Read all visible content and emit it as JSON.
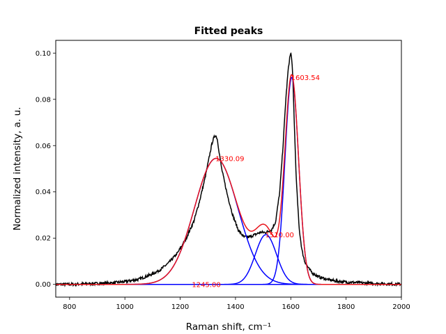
{
  "chart_data": {
    "type": "line",
    "title": "Fitted peaks",
    "xlabel": "Raman shift, cm⁻¹",
    "ylabel": "Normalized intensity, a. u.",
    "xlim": [
      750,
      2000
    ],
    "ylim": [
      -0.0055,
      0.1055
    ],
    "xticks": [
      800,
      1000,
      1200,
      1400,
      1600,
      1800,
      2000
    ],
    "xtick_labels": [
      "800",
      "1000",
      "1200",
      "1400",
      "1600",
      "1800",
      "2000"
    ],
    "yticks": [
      0.0,
      0.02,
      0.04,
      0.06,
      0.08,
      0.1
    ],
    "ytick_labels": [
      "0.00",
      "0.02",
      "0.04",
      "0.06",
      "0.08",
      "0.10"
    ],
    "grid": false,
    "series": [
      {
        "role": "measured-spectrum",
        "color": "#000000",
        "x": [
          750,
          800,
          850,
          900,
          950,
          1000,
          1050,
          1100,
          1130,
          1160,
          1190,
          1220,
          1250,
          1270,
          1290,
          1305,
          1315,
          1322,
          1328,
          1334,
          1340,
          1350,
          1370,
          1390,
          1410,
          1430,
          1450,
          1470,
          1490,
          1510,
          1530,
          1545,
          1560,
          1572,
          1582,
          1590,
          1596,
          1600,
          1604,
          1608,
          1614,
          1620,
          1630,
          1640,
          1650,
          1665,
          1680,
          1700,
          1730,
          1760,
          1800,
          1850,
          1900,
          1950,
          2000
        ],
        "y": [
          0.0,
          0.0,
          0.0002,
          0.0004,
          0.0006,
          0.0012,
          0.0022,
          0.0045,
          0.0065,
          0.0095,
          0.0135,
          0.0195,
          0.0275,
          0.036,
          0.046,
          0.055,
          0.061,
          0.0635,
          0.0645,
          0.063,
          0.058,
          0.05,
          0.039,
          0.03,
          0.0235,
          0.0205,
          0.0205,
          0.0215,
          0.0225,
          0.0225,
          0.0235,
          0.027,
          0.04,
          0.06,
          0.08,
          0.092,
          0.098,
          0.1,
          0.097,
          0.087,
          0.065,
          0.045,
          0.0245,
          0.015,
          0.01,
          0.0068,
          0.0048,
          0.0033,
          0.0022,
          0.0015,
          0.001,
          0.0007,
          0.0004,
          0.0002,
          0.0001
        ]
      },
      {
        "role": "fitted-peak",
        "color": "#0000ff",
        "center": 1245.0,
        "height": 0.0,
        "fwhm": 100.0,
        "label": "1245.00"
      },
      {
        "role": "fitted-peak",
        "color": "#0000ff",
        "center": 1330.09,
        "height": 0.0545,
        "fwhm": 185.0,
        "label": "1330.09"
      },
      {
        "role": "fitted-peak",
        "color": "#0000ff",
        "center": 1510.0,
        "height": 0.0215,
        "fwhm": 90.0,
        "label": "1510.00"
      },
      {
        "role": "fitted-peak",
        "color": "#0000ff",
        "center": 1603.54,
        "height": 0.0895,
        "fwhm": 58.0,
        "label": "1603.54"
      },
      {
        "role": "cumulative-fit",
        "color": "#e8141c"
      }
    ],
    "annotations": [
      {
        "text": "1330.09",
        "x": 1330.09,
        "y": 0.0545,
        "color": "#ff0000"
      },
      {
        "text": "1510.00",
        "x": 1510.0,
        "y": 0.0215,
        "color": "#ff0000"
      },
      {
        "text": "1603.54",
        "x": 1603.54,
        "y": 0.0895,
        "color": "#ff0000"
      },
      {
        "text": "1245.00",
        "x": 1245.0,
        "y": 0.0,
        "color": "#ff0000"
      }
    ]
  }
}
